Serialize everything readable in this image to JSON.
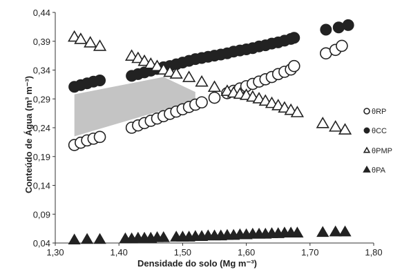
{
  "chart_data": {
    "type": "scatter",
    "xlabel": "Densidade do solo (Mg m⁻³)",
    "ylabel": "Conteúdo de Água (m³ m⁻³)",
    "xlim": [
      1.3,
      1.8
    ],
    "ylim": [
      0.04,
      0.44
    ],
    "xticks": [
      "1,30",
      "1,40",
      "1,50",
      "1,60",
      "1,70",
      "1,80"
    ],
    "yticks": [
      "0,04",
      "0,09",
      "0,14",
      "0,19",
      "0,24",
      "0,29",
      "0,34",
      "0,39",
      "0,44"
    ],
    "grid": false,
    "legend_position": "right",
    "shaded_region": {
      "color": "#c4c4c4",
      "polygon": [
        [
          1.33,
          0.298
        ],
        [
          1.47,
          0.328
        ],
        [
          1.52,
          0.302
        ],
        [
          1.52,
          0.287
        ],
        [
          1.33,
          0.225
        ]
      ]
    },
    "series": [
      {
        "name": "θRP",
        "marker": "open-circle",
        "color": "#222222",
        "points": [
          [
            1.33,
            0.21
          ],
          [
            1.34,
            0.214
          ],
          [
            1.35,
            0.218
          ],
          [
            1.36,
            0.221
          ],
          [
            1.37,
            0.224
          ],
          [
            1.42,
            0.24
          ],
          [
            1.43,
            0.244
          ],
          [
            1.44,
            0.248
          ],
          [
            1.45,
            0.252
          ],
          [
            1.46,
            0.256
          ],
          [
            1.47,
            0.26
          ],
          [
            1.48,
            0.264
          ],
          [
            1.49,
            0.268
          ],
          [
            1.5,
            0.272
          ],
          [
            1.51,
            0.276
          ],
          [
            1.52,
            0.28
          ],
          [
            1.53,
            0.284
          ],
          [
            1.55,
            0.292
          ],
          [
            1.57,
            0.3
          ],
          [
            1.58,
            0.304
          ],
          [
            1.59,
            0.308
          ],
          [
            1.6,
            0.312
          ],
          [
            1.61,
            0.316
          ],
          [
            1.62,
            0.32
          ],
          [
            1.63,
            0.324
          ],
          [
            1.64,
            0.328
          ],
          [
            1.65,
            0.333
          ],
          [
            1.66,
            0.337
          ],
          [
            1.67,
            0.341
          ],
          [
            1.675,
            0.347
          ],
          [
            1.725,
            0.369
          ],
          [
            1.74,
            0.375
          ],
          [
            1.75,
            0.382
          ]
        ]
      },
      {
        "name": "θCC",
        "marker": "filled-circle",
        "color": "#222222",
        "points": [
          [
            1.33,
            0.311
          ],
          [
            1.34,
            0.314
          ],
          [
            1.35,
            0.317
          ],
          [
            1.36,
            0.32
          ],
          [
            1.37,
            0.322
          ],
          [
            1.42,
            0.33
          ],
          [
            1.43,
            0.333
          ],
          [
            1.44,
            0.336
          ],
          [
            1.45,
            0.339
          ],
          [
            1.46,
            0.342
          ],
          [
            1.47,
            0.345
          ],
          [
            1.48,
            0.347
          ],
          [
            1.49,
            0.35
          ],
          [
            1.5,
            0.353
          ],
          [
            1.51,
            0.356
          ],
          [
            1.52,
            0.359
          ],
          [
            1.53,
            0.361
          ],
          [
            1.54,
            0.363
          ],
          [
            1.55,
            0.365
          ],
          [
            1.56,
            0.367
          ],
          [
            1.57,
            0.369
          ],
          [
            1.58,
            0.372
          ],
          [
            1.59,
            0.374
          ],
          [
            1.6,
            0.376
          ],
          [
            1.61,
            0.378
          ],
          [
            1.62,
            0.381
          ],
          [
            1.63,
            0.383
          ],
          [
            1.64,
            0.386
          ],
          [
            1.65,
            0.388
          ],
          [
            1.66,
            0.391
          ],
          [
            1.67,
            0.394
          ],
          [
            1.675,
            0.396
          ],
          [
            1.725,
            0.41
          ],
          [
            1.745,
            0.414
          ],
          [
            1.76,
            0.418
          ]
        ]
      },
      {
        "name": "θPMP",
        "marker": "open-triangle",
        "color": "#222222",
        "points": [
          [
            1.33,
            0.397
          ],
          [
            1.34,
            0.393
          ],
          [
            1.355,
            0.387
          ],
          [
            1.37,
            0.381
          ],
          [
            1.42,
            0.364
          ],
          [
            1.43,
            0.36
          ],
          [
            1.44,
            0.355
          ],
          [
            1.45,
            0.35
          ],
          [
            1.46,
            0.346
          ],
          [
            1.47,
            0.34
          ],
          [
            1.48,
            0.336
          ],
          [
            1.49,
            0.333
          ],
          [
            1.51,
            0.327
          ],
          [
            1.53,
            0.319
          ],
          [
            1.55,
            0.31
          ],
          [
            1.57,
            0.303
          ],
          [
            1.58,
            0.3
          ],
          [
            1.59,
            0.298
          ],
          [
            1.6,
            0.296
          ],
          [
            1.61,
            0.293
          ],
          [
            1.62,
            0.29
          ],
          [
            1.63,
            0.286
          ],
          [
            1.64,
            0.282
          ],
          [
            1.65,
            0.278
          ],
          [
            1.66,
            0.274
          ],
          [
            1.67,
            0.27
          ],
          [
            1.68,
            0.266
          ],
          [
            1.72,
            0.247
          ],
          [
            1.74,
            0.241
          ],
          [
            1.755,
            0.236
          ]
        ]
      },
      {
        "name": "θPA",
        "marker": "filled-triangle",
        "color": "#222222",
        "points": [
          [
            1.33,
            0.045
          ],
          [
            1.35,
            0.046
          ],
          [
            1.37,
            0.046
          ],
          [
            1.41,
            0.047
          ],
          [
            1.42,
            0.047
          ],
          [
            1.43,
            0.048
          ],
          [
            1.44,
            0.048
          ],
          [
            1.45,
            0.048
          ],
          [
            1.46,
            0.049
          ],
          [
            1.47,
            0.049
          ],
          [
            1.49,
            0.05
          ],
          [
            1.5,
            0.05
          ],
          [
            1.51,
            0.05
          ],
          [
            1.52,
            0.051
          ],
          [
            1.53,
            0.051
          ],
          [
            1.54,
            0.052
          ],
          [
            1.55,
            0.052
          ],
          [
            1.56,
            0.052
          ],
          [
            1.57,
            0.053
          ],
          [
            1.58,
            0.053
          ],
          [
            1.59,
            0.054
          ],
          [
            1.6,
            0.054
          ],
          [
            1.61,
            0.055
          ],
          [
            1.62,
            0.055
          ],
          [
            1.63,
            0.055
          ],
          [
            1.64,
            0.056
          ],
          [
            1.65,
            0.056
          ],
          [
            1.66,
            0.057
          ],
          [
            1.67,
            0.057
          ],
          [
            1.68,
            0.057
          ],
          [
            1.72,
            0.058
          ],
          [
            1.74,
            0.059
          ],
          [
            1.755,
            0.059
          ]
        ]
      }
    ]
  }
}
